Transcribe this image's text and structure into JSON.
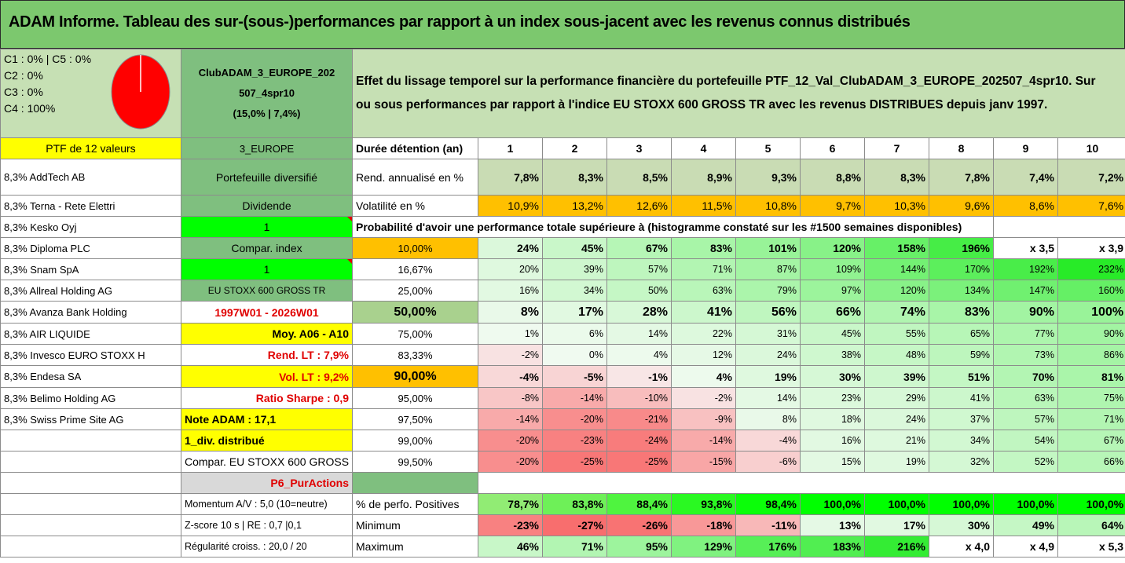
{
  "title": "ADAM Informe. Tableau des sur-(sous-)performances par rapport à un index sous-jacent avec les revenus connus distribués",
  "top": {
    "legend_lines": [
      "C1 : 0% | C5 : 0%",
      "C2 : 0%",
      "C3 : 0%",
      "C4 : 100%"
    ],
    "pie_color": "#ff0000",
    "portfolio_name_1": "ClubADAM_3_EUROPE_202",
    "portfolio_name_2": "507_4spr10",
    "portfolio_perf": "(15,0% | 7,4%)",
    "description_1": "Effet du lissage temporel sur la performance financière du portefeuille PTF_12_Val_ClubADAM_3_EUROPE_202507_4spr10. Sur",
    "description_2": "ou sous performances par rapport à l'indice EU STOXX 600 GROSS TR avec les revenus DISTRIBUES depuis janv 1997."
  },
  "left": {
    "ptf_label": "PTF de 12 valeurs",
    "holdings": [
      "8,3% AddTech AB",
      "8,3% Terna - Rete Elettri",
      "8,3% Kesko Oyj",
      "8,3% Diploma PLC",
      "8,3% Snam SpA",
      "8,3% Allreal Holding AG",
      "8,3% Avanza Bank Holding",
      "8,3% AIR LIQUIDE",
      "8,3% Invesco EURO STOXX H",
      "8,3% Endesa SA",
      "8,3% Belimo Holding AG",
      "8,3% Swiss Prime Site AG"
    ]
  },
  "mid": {
    "region": "3_EUROPE",
    "diversified": "Portefeuille diversifié",
    "dividend_label": "Dividende",
    "dividend_val": "1",
    "compar_label": "Compar. index",
    "compar_val": "1",
    "index_name": "EU STOXX 600 GROSS TR",
    "period": "1997W01 - 2026W01",
    "moy": "Moy. A06 - A10",
    "rend": "Rend. LT : 7,9%",
    "vol": "Vol. LT : 9,2%",
    "sharpe": "Ratio Sharpe : 0,9",
    "note": "Note ADAM : 17,1",
    "div": "1_div. distribué",
    "compar_full": "Compar. EU STOXX 600 GROSS TR",
    "p6": "P6_PurActions",
    "momentum": "Momentum A/V : 5,0 (10=neutre)",
    "zscore": "Z-score 10 s | RE : 0,7 |0,1",
    "regularite": "Régularité croiss. : 20,0 / 20"
  },
  "perf": {
    "duration_label": "Durée détention (an)",
    "years": [
      "1",
      "2",
      "3",
      "4",
      "5",
      "6",
      "7",
      "8",
      "9",
      "10"
    ],
    "rend_label": "Rend. annualisé en %",
    "rend": [
      "7,8%",
      "8,3%",
      "8,5%",
      "8,9%",
      "9,3%",
      "8,8%",
      "8,3%",
      "7,8%",
      "7,4%",
      "7,2%"
    ],
    "vol_label": "Volatilité en %",
    "vol": [
      "10,9%",
      "13,2%",
      "12,6%",
      "11,5%",
      "10,8%",
      "9,7%",
      "10,3%",
      "9,6%",
      "8,6%",
      "7,6%"
    ],
    "prob_title": "Probabilité d'avoir une performance totale supérieure à (histogramme constaté sur les #1500 semaines disponibles)",
    "prob_rows": [
      {
        "p": "10,00%",
        "v": [
          "24%",
          "45%",
          "67%",
          "83%",
          "101%",
          "120%",
          "158%",
          "196%",
          "x 3,5",
          "x 3,9"
        ]
      },
      {
        "p": "16,67%",
        "v": [
          "20%",
          "39%",
          "57%",
          "71%",
          "87%",
          "109%",
          "144%",
          "170%",
          "192%",
          "232%"
        ]
      },
      {
        "p": "25,00%",
        "v": [
          "16%",
          "34%",
          "50%",
          "63%",
          "79%",
          "97%",
          "120%",
          "134%",
          "147%",
          "160%"
        ]
      },
      {
        "p": "50,00%",
        "v": [
          "8%",
          "17%",
          "28%",
          "41%",
          "56%",
          "66%",
          "74%",
          "83%",
          "90%",
          "100%"
        ]
      },
      {
        "p": "75,00%",
        "v": [
          "1%",
          "6%",
          "14%",
          "22%",
          "31%",
          "45%",
          "55%",
          "65%",
          "77%",
          "90%"
        ]
      },
      {
        "p": "83,33%",
        "v": [
          "-2%",
          "0%",
          "4%",
          "12%",
          "24%",
          "38%",
          "48%",
          "59%",
          "73%",
          "86%"
        ]
      },
      {
        "p": "90,00%",
        "v": [
          "-4%",
          "-5%",
          "-1%",
          "4%",
          "19%",
          "30%",
          "39%",
          "51%",
          "70%",
          "81%"
        ]
      },
      {
        "p": "95,00%",
        "v": [
          "-8%",
          "-14%",
          "-10%",
          "-2%",
          "14%",
          "23%",
          "29%",
          "41%",
          "63%",
          "75%"
        ]
      },
      {
        "p": "97,50%",
        "v": [
          "-14%",
          "-20%",
          "-21%",
          "-9%",
          "8%",
          "18%",
          "24%",
          "37%",
          "57%",
          "71%"
        ]
      },
      {
        "p": "99,00%",
        "v": [
          "-20%",
          "-23%",
          "-24%",
          "-14%",
          "-4%",
          "16%",
          "21%",
          "34%",
          "54%",
          "67%"
        ]
      },
      {
        "p": "99,50%",
        "v": [
          "-20%",
          "-25%",
          "-25%",
          "-15%",
          "-6%",
          "15%",
          "19%",
          "32%",
          "52%",
          "66%"
        ]
      }
    ],
    "pos_label": "% de perfo. Positives",
    "pos": [
      "78,7%",
      "83,8%",
      "88,4%",
      "93,8%",
      "98,4%",
      "100,0%",
      "100,0%",
      "100,0%",
      "100,0%",
      "100,0%"
    ],
    "min_label": "Minimum",
    "min": [
      "-23%",
      "-27%",
      "-26%",
      "-18%",
      "-11%",
      "13%",
      "17%",
      "30%",
      "49%",
      "64%"
    ],
    "max_label": "Maximum",
    "max": [
      "46%",
      "71%",
      "95%",
      "129%",
      "176%",
      "183%",
      "216%",
      "x 4,0",
      "x 4,9",
      "x 5,3"
    ]
  },
  "colors": {
    "title_bg": "#7cc86e",
    "green_header": "#7fbf7f",
    "yellow": "#ffff00",
    "bright_green": "#00ff00",
    "orange": "#ffc000",
    "red_text": "#e00000"
  }
}
